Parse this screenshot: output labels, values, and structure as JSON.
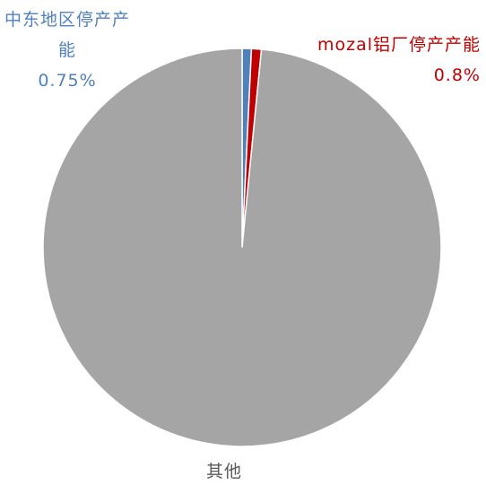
{
  "chart_data": {
    "type": "pie",
    "categories": [
      "中东地区停产产能",
      "mozal铝厂停产产能",
      "其他"
    ],
    "values": [
      0.75,
      0.8,
      98.45
    ],
    "value_labels": [
      "0.75%",
      "0.8%",
      null
    ],
    "colors": [
      "#4f81bd",
      "#c00000",
      "#a5a5a5"
    ],
    "label_colors": [
      "#4f81bd",
      "#c00000",
      "#595959"
    ]
  }
}
